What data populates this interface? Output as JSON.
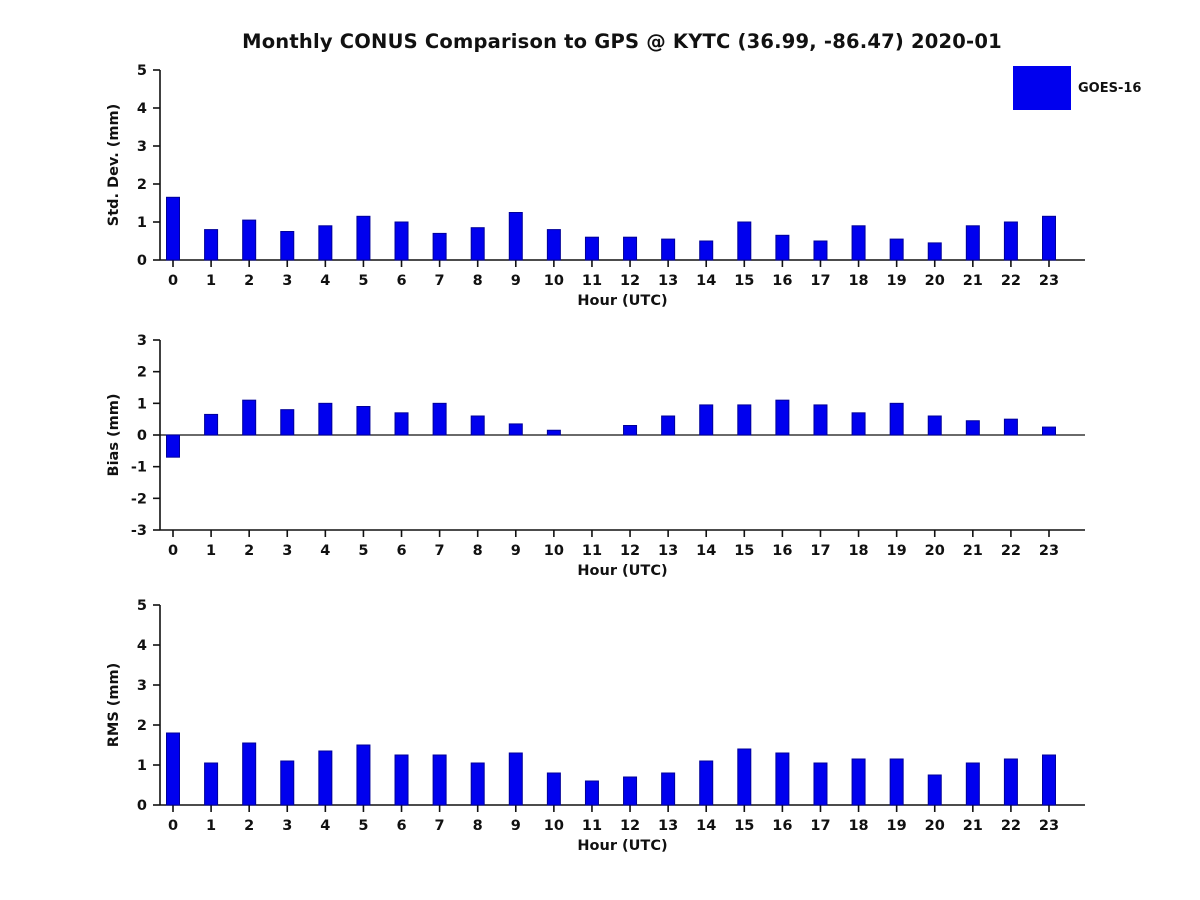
{
  "title": "Monthly CONUS Comparison to GPS @ KYTC (36.99, -86.47) 2020-01",
  "legend": {
    "label": "GOES-16",
    "color": "#0000ee",
    "edge_color": "#000099"
  },
  "chart_data": [
    {
      "type": "bar",
      "name": "std-dev-panel",
      "title": "",
      "ylabel": "Std. Dev. (mm)",
      "xlabel": "Hour (UTC)",
      "ylim": [
        0,
        5
      ],
      "yticks": [
        0,
        1,
        2,
        3,
        4,
        5
      ],
      "grid": false,
      "legend_position": "top-right-figure",
      "categories": [
        "0",
        "1",
        "2",
        "3",
        "4",
        "5",
        "6",
        "7",
        "8",
        "9",
        "10",
        "11",
        "12",
        "13",
        "14",
        "15",
        "16",
        "17",
        "18",
        "19",
        "20",
        "21",
        "22",
        "23"
      ],
      "series": [
        {
          "name": "GOES-16",
          "values": [
            1.65,
            0.8,
            1.05,
            0.75,
            0.9,
            1.15,
            1.0,
            0.7,
            0.85,
            1.25,
            0.8,
            0.6,
            0.6,
            0.55,
            0.5,
            1.0,
            0.65,
            0.5,
            0.9,
            0.55,
            0.45,
            0.9,
            1.0,
            1.15
          ]
        }
      ]
    },
    {
      "type": "bar",
      "name": "bias-panel",
      "title": "",
      "ylabel": "Bias (mm)",
      "xlabel": "Hour (UTC)",
      "ylim": [
        -3,
        3
      ],
      "yticks": [
        -3,
        -2,
        -1,
        0,
        1,
        2,
        3
      ],
      "grid": false,
      "zero_line": true,
      "categories": [
        "0",
        "1",
        "2",
        "3",
        "4",
        "5",
        "6",
        "7",
        "8",
        "9",
        "10",
        "11",
        "12",
        "13",
        "14",
        "15",
        "16",
        "17",
        "18",
        "19",
        "20",
        "21",
        "22",
        "23"
      ],
      "series": [
        {
          "name": "GOES-16",
          "values": [
            -0.7,
            0.65,
            1.1,
            0.8,
            1.0,
            0.9,
            0.7,
            1.0,
            0.6,
            0.35,
            0.15,
            0.0,
            0.3,
            0.6,
            0.95,
            0.95,
            1.1,
            0.95,
            0.7,
            1.0,
            0.6,
            0.45,
            0.5,
            0.25
          ]
        }
      ]
    },
    {
      "type": "bar",
      "name": "rms-panel",
      "title": "",
      "ylabel": "RMS (mm)",
      "xlabel": "Hour (UTC)",
      "ylim": [
        0,
        5
      ],
      "yticks": [
        0,
        1,
        2,
        3,
        4,
        5
      ],
      "grid": false,
      "categories": [
        "0",
        "1",
        "2",
        "3",
        "4",
        "5",
        "6",
        "7",
        "8",
        "9",
        "10",
        "11",
        "12",
        "13",
        "14",
        "15",
        "16",
        "17",
        "18",
        "19",
        "20",
        "21",
        "22",
        "23"
      ],
      "series": [
        {
          "name": "GOES-16",
          "values": [
            1.8,
            1.05,
            1.55,
            1.1,
            1.35,
            1.5,
            1.25,
            1.25,
            1.05,
            1.3,
            0.8,
            0.6,
            0.7,
            0.8,
            1.1,
            1.4,
            1.3,
            1.05,
            1.15,
            1.15,
            0.75,
            1.05,
            1.15,
            1.25
          ]
        }
      ]
    }
  ]
}
